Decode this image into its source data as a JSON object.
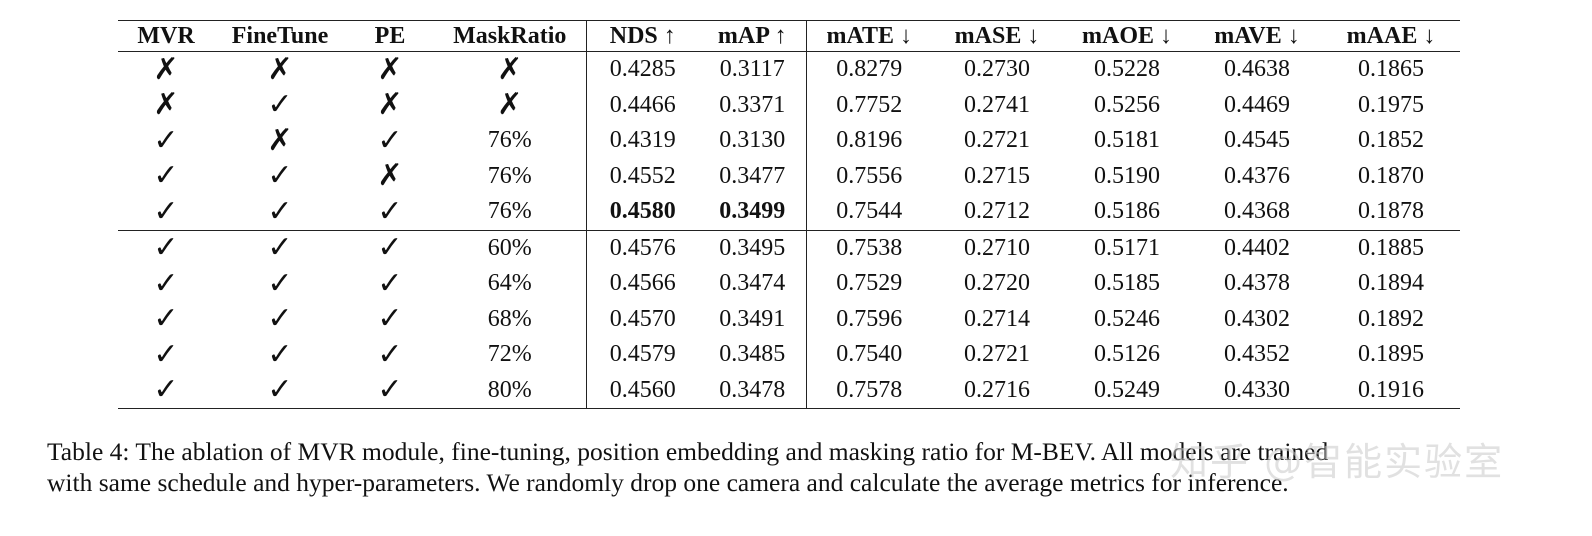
{
  "table": {
    "headers": [
      "MVR",
      "FineTune",
      "PE",
      "MaskRatio",
      "NDS ↑",
      "mAP ↑",
      "mATE ↓",
      "mASE ↓",
      "mAOE ↓",
      "mAVE ↓",
      "mAAE ↓"
    ],
    "rows_group1": [
      [
        "✗",
        "✗",
        "✗",
        "✗",
        "0.4285",
        "0.3117",
        "0.8279",
        "0.2730",
        "0.5228",
        "0.4638",
        "0.1865"
      ],
      [
        "✗",
        "✓",
        "✗",
        "✗",
        "0.4466",
        "0.3371",
        "0.7752",
        "0.2741",
        "0.5256",
        "0.4469",
        "0.1975"
      ],
      [
        "✓",
        "✗",
        "✓",
        "76%",
        "0.4319",
        "0.3130",
        "0.8196",
        "0.2721",
        "0.5181",
        "0.4545",
        "0.1852"
      ],
      [
        "✓",
        "✓",
        "✗",
        "76%",
        "0.4552",
        "0.3477",
        "0.7556",
        "0.2715",
        "0.5190",
        "0.4376",
        "0.1870"
      ],
      [
        "✓",
        "✓",
        "✓",
        "76%",
        "0.4580",
        "0.3499",
        "0.7544",
        "0.2712",
        "0.5186",
        "0.4368",
        "0.1878"
      ]
    ],
    "rows_group2": [
      [
        "✓",
        "✓",
        "✓",
        "60%",
        "0.4576",
        "0.3495",
        "0.7538",
        "0.2710",
        "0.5171",
        "0.4402",
        "0.1885"
      ],
      [
        "✓",
        "✓",
        "✓",
        "64%",
        "0.4566",
        "0.3474",
        "0.7529",
        "0.2720",
        "0.5185",
        "0.4378",
        "0.1894"
      ],
      [
        "✓",
        "✓",
        "✓",
        "68%",
        "0.4570",
        "0.3491",
        "0.7596",
        "0.2714",
        "0.5246",
        "0.4302",
        "0.1892"
      ],
      [
        "✓",
        "✓",
        "✓",
        "72%",
        "0.4579",
        "0.3485",
        "0.7540",
        "0.2721",
        "0.5126",
        "0.4352",
        "0.1895"
      ],
      [
        "✓",
        "✓",
        "✓",
        "80%",
        "0.4560",
        "0.3478",
        "0.7578",
        "0.2716",
        "0.5249",
        "0.4330",
        "0.1916"
      ]
    ]
  },
  "caption": {
    "line1": "Table 4: The ablation of MVR module, fine-tuning, position embedding and masking ratio for M-BEV. All models are trained",
    "line2": "with same schedule and hyper-parameters. We randomly drop one camera and calculate the average metrics for inference."
  },
  "watermark": {
    "text": "知乎 @智能实验室"
  }
}
